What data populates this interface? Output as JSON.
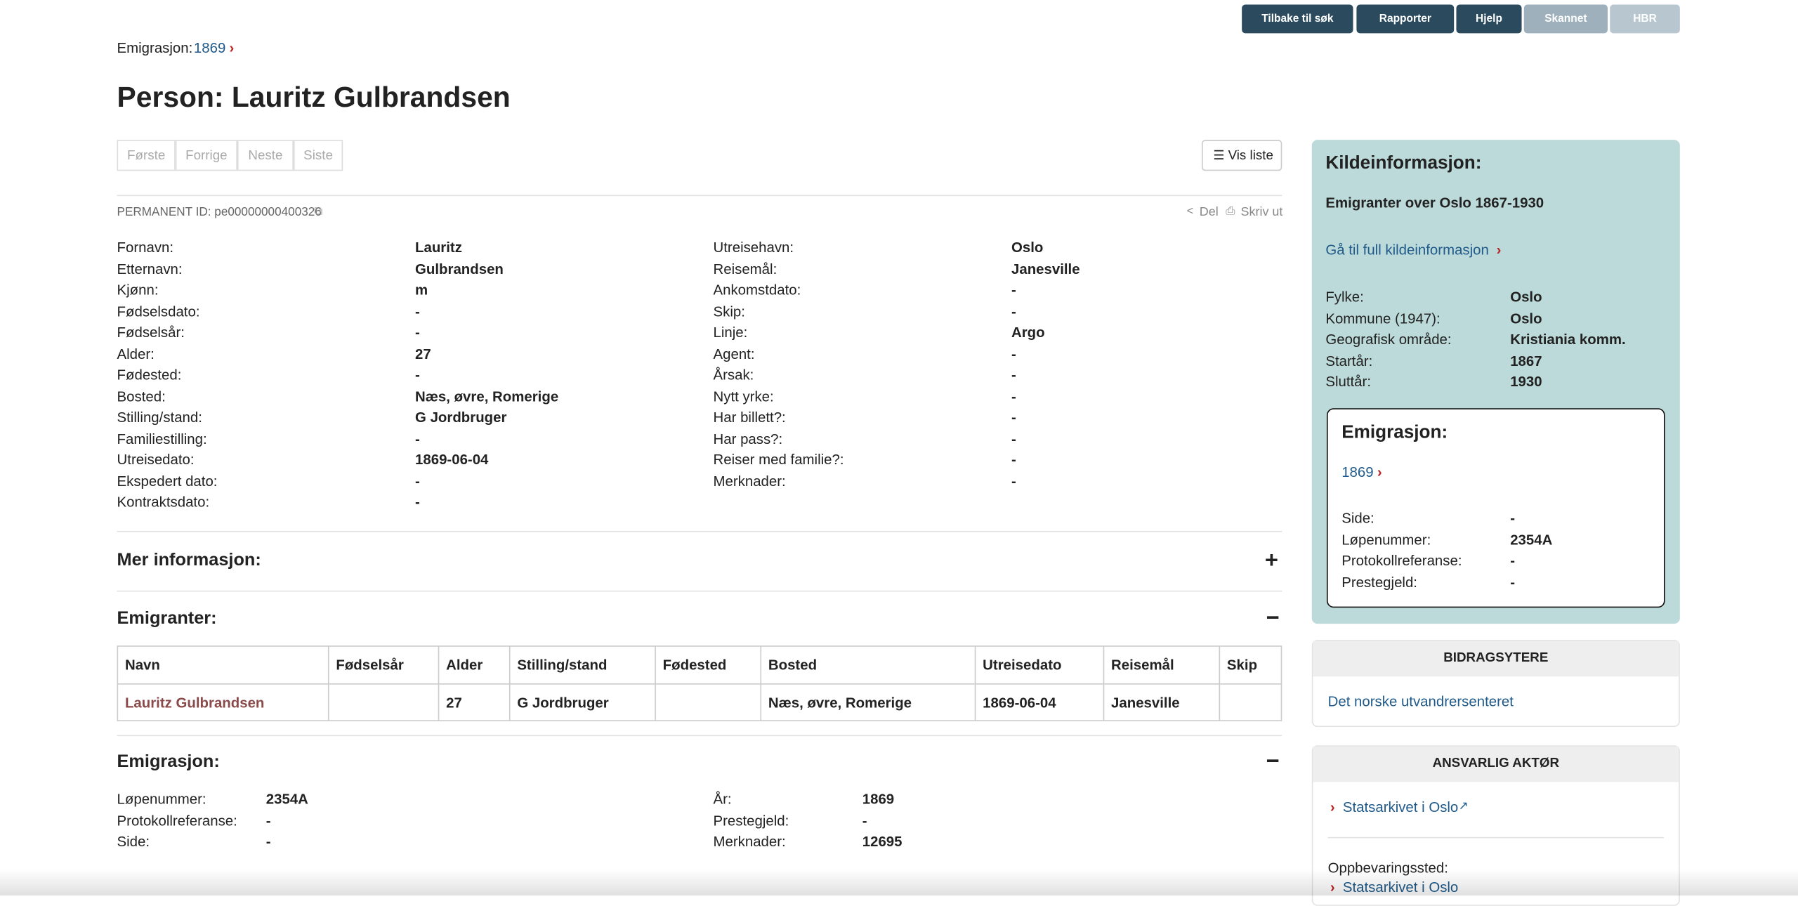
{
  "toolbar": [
    "Tilbake til søk",
    "Rapporter",
    "Hjelp",
    "Skannet",
    "HBR"
  ],
  "breadcrumb": {
    "label": "Emigrasjon:",
    "link": "1869"
  },
  "title": "Person: Lauritz Gulbrandsen",
  "pager": [
    "Første",
    "Forrige",
    "Neste",
    "Siste"
  ],
  "list_button": "Vis liste",
  "permanent_id": "PERMANENT ID: pe00000000400326",
  "actions": [
    "Del",
    "Skriv ut"
  ],
  "person_left": [
    [
      "Fornavn:",
      "Lauritz"
    ],
    [
      "Etternavn:",
      "Gulbrandsen"
    ],
    [
      "Kjønn:",
      "m"
    ],
    [
      "Fødselsdato:",
      "-"
    ],
    [
      "Fødselsår:",
      "-"
    ],
    [
      "Alder:",
      "27"
    ],
    [
      "Fødested:",
      "-"
    ],
    [
      "Bosted:",
      "Næs, øvre, Romerige"
    ],
    [
      "Stilling/stand:",
      "G Jordbruger"
    ],
    [
      "Familiestilling:",
      "-"
    ],
    [
      "Utreisedato:",
      "1869-06-04"
    ],
    [
      "Ekspedert dato:",
      "-"
    ],
    [
      "Kontraktsdato:",
      "-"
    ]
  ],
  "person_right": [
    [
      "Utreisehavn:",
      "Oslo"
    ],
    [
      "Reisemål:",
      "Janesville"
    ],
    [
      "Ankomstdato:",
      "-"
    ],
    [
      "Skip:",
      "-"
    ],
    [
      "Linje:",
      "Argo"
    ],
    [
      "Agent:",
      "-"
    ],
    [
      "Årsak:",
      "-"
    ],
    [
      "Nytt yrke:",
      "-"
    ],
    [
      "Har billett?:",
      "-"
    ],
    [
      "Har pass?:",
      "-"
    ],
    [
      "Reiser med familie?:",
      "-"
    ],
    [
      "Merknader:",
      "-"
    ]
  ],
  "sections": {
    "more": "Mer informasjon:",
    "emigrants": "Emigranter:",
    "emigration": "Emigrasjon:"
  },
  "table": {
    "headers": [
      "Navn",
      "Fødselsår",
      "Alder",
      "Stilling/stand",
      "Fødested",
      "Bosted",
      "Utreisedato",
      "Reisemål",
      "Skip"
    ],
    "rows": [
      [
        "Lauritz Gulbrandsen",
        null,
        "27",
        "G Jordbruger",
        null,
        "Næs, øvre, Romerige",
        "1869-06-04",
        "Janesville",
        null
      ]
    ]
  },
  "emigration_left": [
    [
      "Løpenummer:",
      "2354A"
    ],
    [
      "Protokollreferanse:",
      "-"
    ],
    [
      "Side:",
      "-"
    ]
  ],
  "emigration_right": [
    [
      "År:",
      "1869"
    ],
    [
      "Prestegjeld:",
      "-"
    ],
    [
      "Merknader:",
      "12695"
    ]
  ],
  "sidebar": {
    "source_title": "Kildeinformasjon:",
    "source_name": "Emigranter over Oslo 1867-1930",
    "source_link": "Gå til full kildeinformasjon",
    "source_fields": [
      [
        "Fylke:",
        "Oslo"
      ],
      [
        "Kommune (1947):",
        "Oslo"
      ],
      [
        "Geografisk område:",
        "Kristiania komm."
      ],
      [
        "Startår:",
        "1867"
      ],
      [
        "Sluttår:",
        "1930"
      ]
    ],
    "box_title": "Emigrasjon:",
    "box_link": "1869",
    "box_fields": [
      [
        "Side:",
        "-"
      ],
      [
        "Løpenummer:",
        "2354A"
      ],
      [
        "Protokollreferanse:",
        "-"
      ],
      [
        "Prestegjeld:",
        "-"
      ]
    ],
    "contributors_title": "BIDRAGSYTERE",
    "contributor": "Det norske utvandrersenteret",
    "responsible_title": "ANSVARLIG AKTØR",
    "responsible": "Statsarkivet i Oslo",
    "storage_label": "Oppbevaringssted:",
    "storage": "Statsarkivet i Oslo"
  }
}
